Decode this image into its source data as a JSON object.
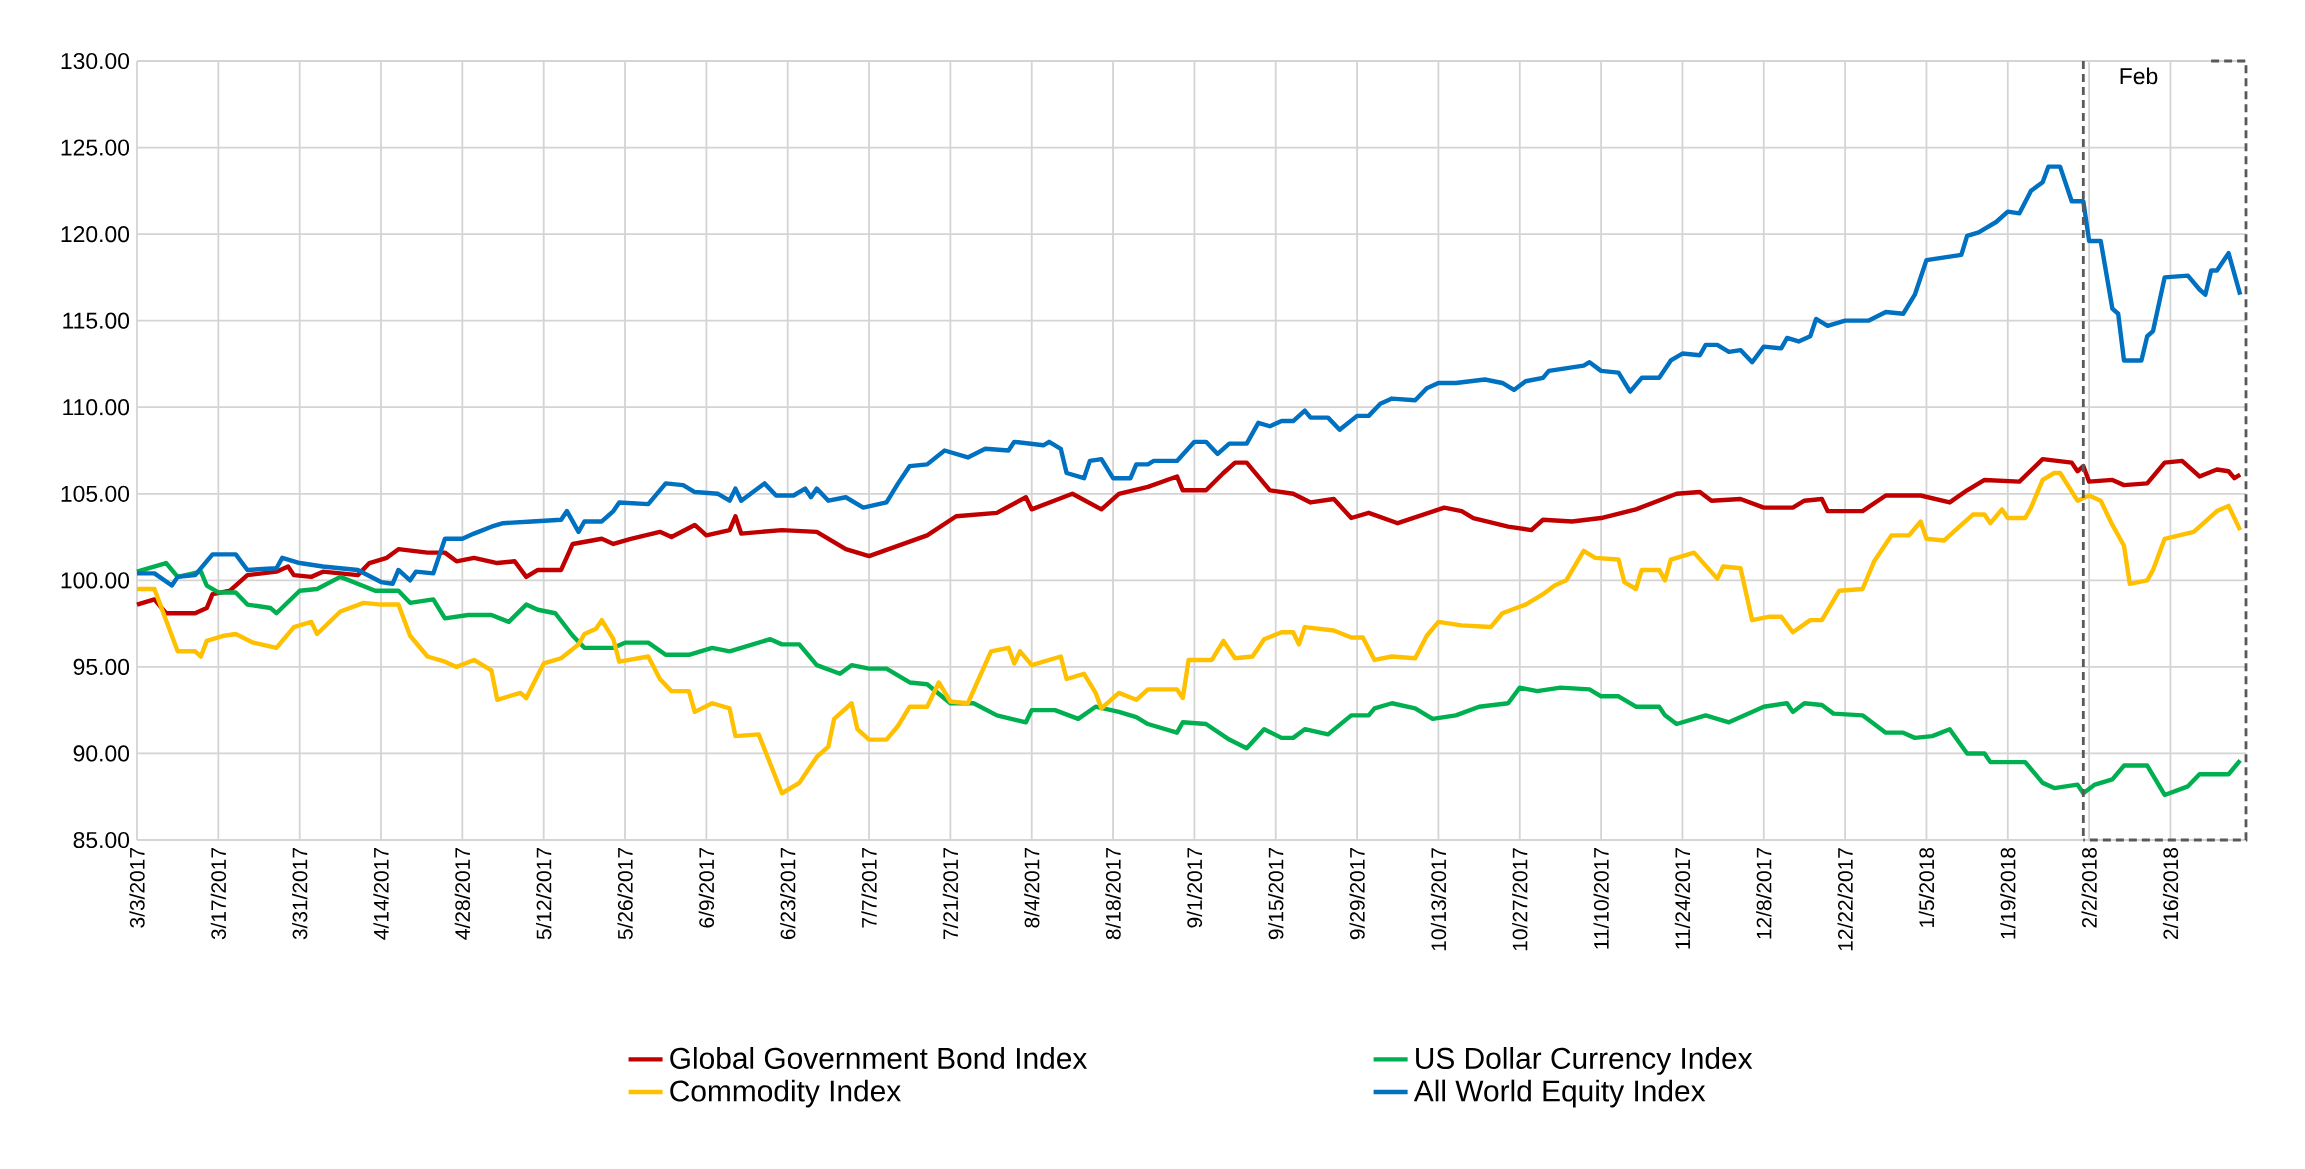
{
  "chart_data": {
    "type": "line",
    "ylim": [
      85,
      130
    ],
    "xlim": [
      "2017-03-03",
      "2018-03-01"
    ],
    "grid": true,
    "legend": "bottom",
    "yticks": [
      {
        "value": 85,
        "label": "85.00"
      },
      {
        "value": 90,
        "label": "90.00"
      },
      {
        "value": 95,
        "label": "95.00"
      },
      {
        "value": 100,
        "label": "100.00"
      },
      {
        "value": 105,
        "label": "105.00"
      },
      {
        "value": 110,
        "label": "110.00"
      },
      {
        "value": 115,
        "label": "115.00"
      },
      {
        "value": 120,
        "label": "120.00"
      },
      {
        "value": 125,
        "label": "125.00"
      },
      {
        "value": 130,
        "label": "130.00"
      }
    ],
    "xticks": [
      {
        "value": "2017-03-03",
        "label": "3/3/2017"
      },
      {
        "value": "2017-03-17",
        "label": "3/17/2017"
      },
      {
        "value": "2017-03-31",
        "label": "3/31/2017"
      },
      {
        "value": "2017-04-14",
        "label": "4/14/2017"
      },
      {
        "value": "2017-04-28",
        "label": "4/28/2017"
      },
      {
        "value": "2017-05-12",
        "label": "5/12/2017"
      },
      {
        "value": "2017-05-26",
        "label": "5/26/2017"
      },
      {
        "value": "2017-06-09",
        "label": "6/9/2017"
      },
      {
        "value": "2017-06-23",
        "label": "6/23/2017"
      },
      {
        "value": "2017-07-07",
        "label": "7/7/2017"
      },
      {
        "value": "2017-07-21",
        "label": "7/21/2017"
      },
      {
        "value": "2017-08-04",
        "label": "8/4/2017"
      },
      {
        "value": "2017-08-18",
        "label": "8/18/2017"
      },
      {
        "value": "2017-09-01",
        "label": "9/1/2017"
      },
      {
        "value": "2017-09-15",
        "label": "9/15/2017"
      },
      {
        "value": "2017-09-29",
        "label": "9/29/2017"
      },
      {
        "value": "2017-10-13",
        "label": "10/13/2017"
      },
      {
        "value": "2017-10-27",
        "label": "10/27/2017"
      },
      {
        "value": "2017-11-10",
        "label": "11/10/2017"
      },
      {
        "value": "2017-11-24",
        "label": "11/24/2017"
      },
      {
        "value": "2017-12-08",
        "label": "12/8/2017"
      },
      {
        "value": "2017-12-22",
        "label": "12/22/2017"
      },
      {
        "value": "2018-01-05",
        "label": "1/5/2018"
      },
      {
        "value": "2018-01-19",
        "label": "1/19/2018"
      },
      {
        "value": "2018-02-02",
        "label": "2/2/2018"
      },
      {
        "value": "2018-02-16",
        "label": "2/16/2018"
      }
    ],
    "ref_lines": [
      {
        "axis": "x",
        "value": "2018-02-01",
        "label": "Feb",
        "color": "#595959",
        "line_style": "dashed"
      }
    ],
    "series": [
      {
        "name": "Global Government Bond Index",
        "color": "#c00000",
        "x": [
          "2017-03-03",
          "2017-03-06",
          "2017-03-08",
          "2017-03-13",
          "2017-03-15",
          "2017-03-16",
          "2017-03-19",
          "2017-03-22",
          "2017-03-27",
          "2017-03-29",
          "2017-03-30",
          "2017-04-02",
          "2017-04-04",
          "2017-04-10",
          "2017-04-12",
          "2017-04-15",
          "2017-04-17",
          "2017-04-22",
          "2017-04-25",
          "2017-04-27",
          "2017-04-30",
          "2017-05-04",
          "2017-05-07",
          "2017-05-09",
          "2017-05-11",
          "2017-05-15",
          "2017-05-17",
          "2017-05-22",
          "2017-05-24",
          "2017-05-27",
          "2017-06-01",
          "2017-06-03",
          "2017-06-07",
          "2017-06-09",
          "2017-06-13",
          "2017-06-14",
          "2017-06-15",
          "2017-06-22",
          "2017-06-28",
          "2017-07-03",
          "2017-07-07",
          "2017-07-17",
          "2017-07-22",
          "2017-07-29",
          "2017-08-03",
          "2017-08-04",
          "2017-08-11",
          "2017-08-16",
          "2017-08-19",
          "2017-08-24",
          "2017-08-29",
          "2017-08-30",
          "2017-09-03",
          "2017-09-06",
          "2017-09-08",
          "2017-09-10",
          "2017-09-14",
          "2017-09-18",
          "2017-09-21",
          "2017-09-25",
          "2017-09-28",
          "2017-10-01",
          "2017-10-06",
          "2017-10-14",
          "2017-10-17",
          "2017-10-19",
          "2017-10-25",
          "2017-10-29",
          "2017-10-31",
          "2017-11-05",
          "2017-11-10",
          "2017-11-16",
          "2017-11-23",
          "2017-11-27",
          "2017-11-29",
          "2017-12-04",
          "2017-12-08",
          "2017-12-13",
          "2017-12-15",
          "2017-12-18",
          "2017-12-19",
          "2017-12-25",
          "2017-12-29",
          "2018-01-04",
          "2018-01-09",
          "2018-01-12",
          "2018-01-15",
          "2018-01-21",
          "2018-01-25",
          "2018-01-30",
          "2018-01-31",
          "2018-02-01",
          "2018-02-02",
          "2018-02-06",
          "2018-02-08",
          "2018-02-12",
          "2018-02-15",
          "2018-02-18",
          "2018-02-21",
          "2018-02-24",
          "2018-02-26",
          "2018-02-27",
          "2018-02-28"
        ],
        "values": [
          98.6,
          98.9,
          98.1,
          98.1,
          98.4,
          99.2,
          99.4,
          100.3,
          100.5,
          100.8,
          100.3,
          100.2,
          100.5,
          100.3,
          101.0,
          101.3,
          101.8,
          101.6,
          101.6,
          101.1,
          101.3,
          101.0,
          101.1,
          100.2,
          100.6,
          100.6,
          102.1,
          102.4,
          102.1,
          102.4,
          102.8,
          102.5,
          103.2,
          102.6,
          102.9,
          103.7,
          102.7,
          102.9,
          102.8,
          101.8,
          101.4,
          102.6,
          103.7,
          103.9,
          104.8,
          104.1,
          105.0,
          104.1,
          105.0,
          105.4,
          106.0,
          105.2,
          105.2,
          106.2,
          106.8,
          106.8,
          105.2,
          105.0,
          104.5,
          104.7,
          103.6,
          103.9,
          103.3,
          104.2,
          104.0,
          103.6,
          103.1,
          102.9,
          103.5,
          103.4,
          103.6,
          104.1,
          105.0,
          105.1,
          104.6,
          104.7,
          104.2,
          104.2,
          104.6,
          104.7,
          104.0,
          104.0,
          104.9,
          104.9,
          104.5,
          105.2,
          105.8,
          105.7,
          107.0,
          106.8,
          106.3,
          106.6,
          105.7,
          105.8,
          105.5,
          105.6,
          106.8,
          106.9,
          106.0,
          106.4,
          106.3,
          105.9,
          106.1
        ]
      },
      {
        "name": "US Dollar Currency Index",
        "color": "#00b050",
        "x": [
          "2017-03-03",
          "2017-03-08",
          "2017-03-10",
          "2017-03-14",
          "2017-03-15",
          "2017-03-17",
          "2017-03-20",
          "2017-03-22",
          "2017-03-26",
          "2017-03-27",
          "2017-03-31",
          "2017-04-03",
          "2017-04-07",
          "2017-04-10",
          "2017-04-13",
          "2017-04-17",
          "2017-04-19",
          "2017-04-23",
          "2017-04-25",
          "2017-04-29",
          "2017-05-03",
          "2017-05-06",
          "2017-05-09",
          "2017-05-11",
          "2017-05-14",
          "2017-05-17",
          "2017-05-19",
          "2017-05-24",
          "2017-05-26",
          "2017-05-30",
          "2017-06-02",
          "2017-06-06",
          "2017-06-10",
          "2017-06-13",
          "2017-06-16",
          "2017-06-20",
          "2017-06-22",
          "2017-06-25",
          "2017-06-28",
          "2017-07-02",
          "2017-07-04",
          "2017-07-07",
          "2017-07-10",
          "2017-07-14",
          "2017-07-17",
          "2017-07-21",
          "2017-07-25",
          "2017-07-29",
          "2017-08-03",
          "2017-08-04",
          "2017-08-08",
          "2017-08-12",
          "2017-08-15",
          "2017-08-19",
          "2017-08-22",
          "2017-08-24",
          "2017-08-29",
          "2017-08-30",
          "2017-09-03",
          "2017-09-07",
          "2017-09-10",
          "2017-09-13",
          "2017-09-16",
          "2017-09-18",
          "2017-09-20",
          "2017-09-24",
          "2017-09-28",
          "2017-10-01",
          "2017-10-02",
          "2017-10-05",
          "2017-10-09",
          "2017-10-12",
          "2017-10-16",
          "2017-10-20",
          "2017-10-25",
          "2017-10-27",
          "2017-10-30",
          "2017-11-03",
          "2017-11-08",
          "2017-11-10",
          "2017-11-13",
          "2017-11-16",
          "2017-11-20",
          "2017-11-21",
          "2017-11-23",
          "2017-11-28",
          "2017-12-02",
          "2017-12-08",
          "2017-12-12",
          "2017-12-13",
          "2017-12-15",
          "2017-12-18",
          "2017-12-20",
          "2017-12-25",
          "2017-12-29",
          "2018-01-01",
          "2018-01-03",
          "2018-01-06",
          "2018-01-09",
          "2018-01-12",
          "2018-01-15",
          "2018-01-16",
          "2018-01-22",
          "2018-01-25",
          "2018-01-27",
          "2018-01-31",
          "2018-02-01",
          "2018-02-03",
          "2018-02-06",
          "2018-02-08",
          "2018-02-12",
          "2018-02-15",
          "2018-02-19",
          "2018-02-21",
          "2018-02-26",
          "2018-02-28"
        ],
        "values": [
          100.5,
          101.0,
          100.2,
          100.5,
          99.7,
          99.3,
          99.3,
          98.6,
          98.4,
          98.1,
          99.4,
          99.5,
          100.2,
          99.8,
          99.4,
          99.4,
          98.7,
          98.9,
          97.8,
          98.0,
          98.0,
          97.6,
          98.6,
          98.3,
          98.1,
          96.8,
          96.1,
          96.1,
          96.4,
          96.4,
          95.7,
          95.7,
          96.1,
          95.9,
          96.2,
          96.6,
          96.3,
          96.3,
          95.1,
          94.6,
          95.1,
          94.9,
          94.9,
          94.1,
          94.0,
          92.9,
          92.9,
          92.2,
          91.8,
          92.5,
          92.5,
          92.0,
          92.7,
          92.4,
          92.1,
          91.7,
          91.2,
          91.8,
          91.7,
          90.8,
          90.3,
          91.4,
          90.9,
          90.9,
          91.4,
          91.1,
          92.2,
          92.2,
          92.6,
          92.9,
          92.6,
          92.0,
          92.2,
          92.7,
          92.9,
          93.8,
          93.6,
          93.8,
          93.7,
          93.3,
          93.3,
          92.7,
          92.7,
          92.2,
          91.7,
          92.2,
          91.8,
          92.7,
          92.9,
          92.4,
          92.9,
          92.8,
          92.3,
          92.2,
          91.2,
          91.2,
          90.9,
          91.0,
          91.4,
          90.0,
          90.0,
          89.5,
          89.5,
          88.3,
          88.0,
          88.2,
          87.7,
          88.2,
          88.5,
          89.3,
          89.3,
          87.6,
          88.1,
          88.8,
          88.8,
          89.6
        ]
      },
      {
        "name": "Commodity Index",
        "color": "#ffc000",
        "x": [
          "2017-03-03",
          "2017-03-06",
          "2017-03-08",
          "2017-03-10",
          "2017-03-13",
          "2017-03-14",
          "2017-03-15",
          "2017-03-18",
          "2017-03-20",
          "2017-03-23",
          "2017-03-27",
          "2017-03-30",
          "2017-04-02",
          "2017-04-03",
          "2017-04-07",
          "2017-04-11",
          "2017-04-14",
          "2017-04-17",
          "2017-04-19",
          "2017-04-22",
          "2017-04-25",
          "2017-04-27",
          "2017-04-30",
          "2017-05-03",
          "2017-05-04",
          "2017-05-08",
          "2017-05-09",
          "2017-05-12",
          "2017-05-15",
          "2017-05-18",
          "2017-05-19",
          "2017-05-21",
          "2017-05-22",
          "2017-05-24",
          "2017-05-25",
          "2017-05-30",
          "2017-06-01",
          "2017-06-03",
          "2017-06-06",
          "2017-06-07",
          "2017-06-10",
          "2017-06-13",
          "2017-06-14",
          "2017-06-18",
          "2017-06-22",
          "2017-06-25",
          "2017-06-28",
          "2017-06-30",
          "2017-07-01",
          "2017-07-04",
          "2017-07-05",
          "2017-07-07",
          "2017-07-10",
          "2017-07-12",
          "2017-07-14",
          "2017-07-17",
          "2017-07-19",
          "2017-07-21",
          "2017-07-24",
          "2017-07-28",
          "2017-07-31",
          "2017-08-01",
          "2017-08-02",
          "2017-08-04",
          "2017-08-09",
          "2017-08-10",
          "2017-08-13",
          "2017-08-15",
          "2017-08-16",
          "2017-08-19",
          "2017-08-22",
          "2017-08-24",
          "2017-08-29",
          "2017-08-30",
          "2017-08-31",
          "2017-09-04",
          "2017-09-06",
          "2017-09-08",
          "2017-09-11",
          "2017-09-13",
          "2017-09-16",
          "2017-09-18",
          "2017-09-19",
          "2017-09-20",
          "2017-09-25",
          "2017-09-28",
          "2017-09-30",
          "2017-10-02",
          "2017-10-05",
          "2017-10-09",
          "2017-10-11",
          "2017-10-13",
          "2017-10-17",
          "2017-10-22",
          "2017-10-24",
          "2017-10-28",
          "2017-10-31",
          "2017-11-02",
          "2017-11-04",
          "2017-11-07",
          "2017-11-09",
          "2017-11-13",
          "2017-11-14",
          "2017-11-16",
          "2017-11-17",
          "2017-11-20",
          "2017-11-21",
          "2017-11-22",
          "2017-11-26",
          "2017-11-30",
          "2017-12-01",
          "2017-12-04",
          "2017-12-06",
          "2017-12-09",
          "2017-12-11",
          "2017-12-13",
          "2017-12-16",
          "2017-12-18",
          "2017-12-21",
          "2017-12-25",
          "2017-12-27",
          "2017-12-30",
          "2018-01-02",
          "2018-01-04",
          "2018-01-05",
          "2018-01-08",
          "2018-01-11",
          "2018-01-13",
          "2018-01-15",
          "2018-01-16",
          "2018-01-18",
          "2018-01-19",
          "2018-01-22",
          "2018-01-23",
          "2018-01-25",
          "2018-01-27",
          "2018-01-28",
          "2018-01-31",
          "2018-02-02",
          "2018-02-04",
          "2018-02-06",
          "2018-02-08",
          "2018-02-09",
          "2018-02-12",
          "2018-02-13",
          "2018-02-15",
          "2018-02-20",
          "2018-02-24",
          "2018-02-26",
          "2018-02-28"
        ],
        "values": [
          99.5,
          99.5,
          97.7,
          95.9,
          95.9,
          95.6,
          96.5,
          96.8,
          96.9,
          96.4,
          96.1,
          97.3,
          97.6,
          96.9,
          98.2,
          98.7,
          98.6,
          98.6,
          96.8,
          95.6,
          95.3,
          95.0,
          95.4,
          94.8,
          93.1,
          93.5,
          93.2,
          95.2,
          95.5,
          96.3,
          96.9,
          97.2,
          97.7,
          96.6,
          95.3,
          95.6,
          94.3,
          93.6,
          93.6,
          92.4,
          92.9,
          92.6,
          91.0,
          91.1,
          87.7,
          88.3,
          89.8,
          90.4,
          92.0,
          92.9,
          91.4,
          90.8,
          90.8,
          91.6,
          92.7,
          92.7,
          94.1,
          93.0,
          92.9,
          95.9,
          96.1,
          95.2,
          95.9,
          95.1,
          95.6,
          94.3,
          94.6,
          93.5,
          92.6,
          93.5,
          93.1,
          93.7,
          93.7,
          93.2,
          95.4,
          95.4,
          96.5,
          95.5,
          95.6,
          96.6,
          97.0,
          97.0,
          96.3,
          97.3,
          97.1,
          96.7,
          96.7,
          95.4,
          95.6,
          95.5,
          96.8,
          97.6,
          97.4,
          97.3,
          98.1,
          98.6,
          99.2,
          99.7,
          100.0,
          101.7,
          101.3,
          101.2,
          99.9,
          99.5,
          100.6,
          100.6,
          100.0,
          101.2,
          101.6,
          100.1,
          100.8,
          100.7,
          97.7,
          97.9,
          97.9,
          97.0,
          97.7,
          97.7,
          99.4,
          99.5,
          101.1,
          102.6,
          102.6,
          103.4,
          102.4,
          102.3,
          103.2,
          103.8,
          103.8,
          103.3,
          104.1,
          103.6,
          103.6,
          104.2,
          105.8,
          106.2,
          106.2,
          104.6,
          104.9,
          104.6,
          103.2,
          102.0,
          99.8,
          100.0,
          100.6,
          102.4,
          102.8,
          104.0,
          104.3,
          102.9
        ]
      },
      {
        "name": "All World Equity Index",
        "color": "#0070c0",
        "x": [
          "2017-03-03",
          "2017-03-06",
          "2017-03-09",
          "2017-03-10",
          "2017-03-13",
          "2017-03-16",
          "2017-03-20",
          "2017-03-22",
          "2017-03-27",
          "2017-03-28",
          "2017-03-31",
          "2017-04-04",
          "2017-04-10",
          "2017-04-14",
          "2017-04-16",
          "2017-04-17",
          "2017-04-19",
          "2017-04-20",
          "2017-04-23",
          "2017-04-25",
          "2017-04-28",
          "2017-04-30",
          "2017-05-03",
          "2017-05-05",
          "2017-05-10",
          "2017-05-15",
          "2017-05-16",
          "2017-05-18",
          "2017-05-19",
          "2017-05-22",
          "2017-05-24",
          "2017-05-25",
          "2017-05-30",
          "2017-06-02",
          "2017-06-05",
          "2017-06-07",
          "2017-06-11",
          "2017-06-13",
          "2017-06-14",
          "2017-06-15",
          "2017-06-19",
          "2017-06-21",
          "2017-06-24",
          "2017-06-26",
          "2017-06-27",
          "2017-06-28",
          "2017-06-30",
          "2017-07-03",
          "2017-07-06",
          "2017-07-10",
          "2017-07-12",
          "2017-07-14",
          "2017-07-17",
          "2017-07-20",
          "2017-07-24",
          "2017-07-27",
          "2017-07-31",
          "2017-08-01",
          "2017-08-06",
          "2017-08-07",
          "2017-08-09",
          "2017-08-10",
          "2017-08-13",
          "2017-08-14",
          "2017-08-16",
          "2017-08-18",
          "2017-08-21",
          "2017-08-22",
          "2017-08-24",
          "2017-08-25",
          "2017-08-29",
          "2017-09-01",
          "2017-09-03",
          "2017-09-05",
          "2017-09-07",
          "2017-09-10",
          "2017-09-12",
          "2017-09-14",
          "2017-09-16",
          "2017-09-18",
          "2017-09-20",
          "2017-09-21",
          "2017-09-24",
          "2017-09-26",
          "2017-09-29",
          "2017-10-01",
          "2017-10-03",
          "2017-10-05",
          "2017-10-09",
          "2017-10-11",
          "2017-10-13",
          "2017-10-16",
          "2017-10-21",
          "2017-10-24",
          "2017-10-26",
          "2017-10-28",
          "2017-10-31",
          "2017-11-01",
          "2017-11-07",
          "2017-11-08",
          "2017-11-10",
          "2017-11-13",
          "2017-11-15",
          "2017-11-17",
          "2017-11-20",
          "2017-11-22",
          "2017-11-24",
          "2017-11-27",
          "2017-11-28",
          "2017-11-30",
          "2017-12-02",
          "2017-12-04",
          "2017-12-06",
          "2017-12-08",
          "2017-12-11",
          "2017-12-12",
          "2017-12-14",
          "2017-12-16",
          "2017-12-17",
          "2017-12-19",
          "2017-12-22",
          "2017-12-26",
          "2017-12-29",
          "2018-01-01",
          "2018-01-03",
          "2018-01-05",
          "2018-01-09",
          "2018-01-11",
          "2018-01-12",
          "2018-01-14",
          "2018-01-15",
          "2018-01-17",
          "2018-01-19",
          "2018-01-21",
          "2018-01-23",
          "2018-01-25",
          "2018-01-26",
          "2018-01-28",
          "2018-01-30",
          "2018-02-01",
          "2018-02-02",
          "2018-02-04",
          "2018-02-06",
          "2018-02-07",
          "2018-02-08",
          "2018-02-11",
          "2018-02-12",
          "2018-02-13",
          "2018-02-15",
          "2018-02-19",
          "2018-02-21",
          "2018-02-22",
          "2018-02-23",
          "2018-02-24",
          "2018-02-26",
          "2018-02-28"
        ],
        "values": [
          100.4,
          100.4,
          99.7,
          100.2,
          100.3,
          101.5,
          101.5,
          100.6,
          100.7,
          101.3,
          101.0,
          100.8,
          100.6,
          99.9,
          99.8,
          100.6,
          100.0,
          100.5,
          100.4,
          102.4,
          102.4,
          102.7,
          103.1,
          103.3,
          103.4,
          103.5,
          104.0,
          102.8,
          103.4,
          103.4,
          104.0,
          104.5,
          104.4,
          105.6,
          105.5,
          105.1,
          105.0,
          104.6,
          105.3,
          104.6,
          105.6,
          104.9,
          104.9,
          105.3,
          104.8,
          105.3,
          104.6,
          104.8,
          104.2,
          104.5,
          105.6,
          106.6,
          106.7,
          107.5,
          107.1,
          107.6,
          107.5,
          108.0,
          107.8,
          108.0,
          107.6,
          106.2,
          105.9,
          106.9,
          107.0,
          105.9,
          105.9,
          106.7,
          106.7,
          106.9,
          106.9,
          108.0,
          108.0,
          107.3,
          107.9,
          107.9,
          109.1,
          108.9,
          109.2,
          109.2,
          109.8,
          109.4,
          109.4,
          108.7,
          109.5,
          109.5,
          110.2,
          110.5,
          110.4,
          111.1,
          111.4,
          111.4,
          111.6,
          111.4,
          111.0,
          111.5,
          111.7,
          112.1,
          112.4,
          112.6,
          112.1,
          112.0,
          110.9,
          111.7,
          111.7,
          112.7,
          113.1,
          113.0,
          113.6,
          113.6,
          113.2,
          113.3,
          112.6,
          113.5,
          113.4,
          114.0,
          113.8,
          114.1,
          115.1,
          114.7,
          115.0,
          115.0,
          115.5,
          115.4,
          116.5,
          118.5,
          118.7,
          118.8,
          119.9,
          120.1,
          120.3,
          120.7,
          121.3,
          121.2,
          122.5,
          123.0,
          123.9,
          123.9,
          121.9,
          121.9,
          119.6,
          119.6,
          115.7,
          115.4,
          112.7,
          112.7,
          114.1,
          114.4,
          117.5,
          117.6,
          116.8,
          116.5,
          117.9,
          117.9,
          118.9,
          116.5
        ]
      }
    ]
  }
}
